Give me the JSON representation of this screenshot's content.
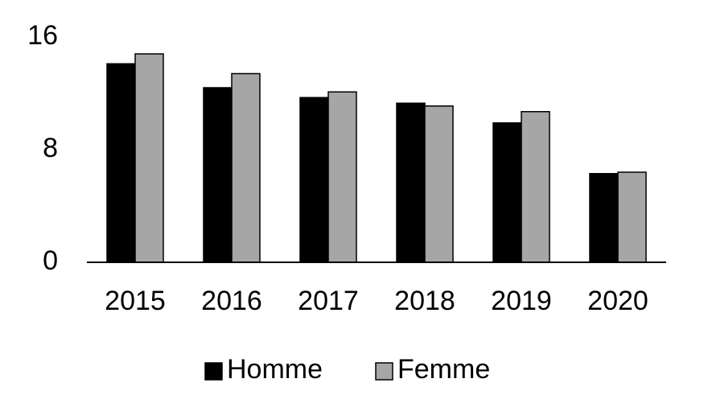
{
  "chart_data": {
    "type": "bar",
    "categories": [
      "2015",
      "2016",
      "2017",
      "2018",
      "2019",
      "2020"
    ],
    "series": [
      {
        "name": "Homme",
        "color": "#000000",
        "values": [
          14.1,
          12.4,
          11.7,
          11.3,
          9.9,
          6.3
        ]
      },
      {
        "name": "Femme",
        "color": "#a6a6a6",
        "values": [
          14.8,
          13.4,
          12.1,
          11.1,
          10.7,
          6.4
        ]
      }
    ],
    "ylim": [
      0,
      16
    ],
    "yticks": [
      0,
      8,
      16
    ],
    "grid": false,
    "legend": "bottom"
  }
}
